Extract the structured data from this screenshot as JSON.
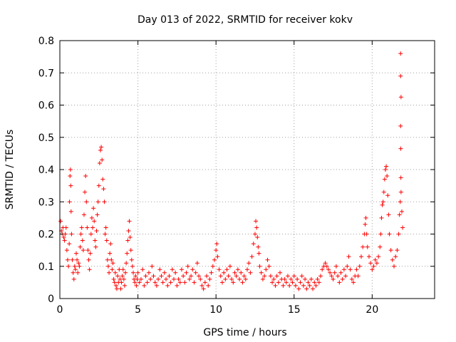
{
  "chart_data": {
    "type": "scatter",
    "title": "Day 013 of 2022, SRMTID for receiver kokv",
    "xlabel": "GPS time / hours",
    "ylabel": "SRMTID / TECUs",
    "xlim": [
      0,
      24
    ],
    "ylim": [
      0,
      0.8
    ],
    "x_ticks": [
      0,
      5,
      10,
      15,
      20
    ],
    "y_ticks": [
      0,
      0.1,
      0.2,
      0.3,
      0.4,
      0.5,
      0.6,
      0.7,
      0.8
    ],
    "x_tick_labels": [
      "0",
      "5",
      "10",
      "15",
      "20"
    ],
    "y_tick_labels": [
      "0",
      "0.1",
      "0.2",
      "0.3",
      "0.4",
      "0.5",
      "0.6",
      "0.7",
      "0.8"
    ],
    "grid": true,
    "marker": "+",
    "color": "#ff0000",
    "series": [
      {
        "name": "SRMTID",
        "points": [
          [
            0.05,
            0.24
          ],
          [
            0.1,
            0.21
          ],
          [
            0.15,
            0.2
          ],
          [
            0.2,
            0.22
          ],
          [
            0.25,
            0.19
          ],
          [
            0.3,
            0.18
          ],
          [
            0.35,
            0.2
          ],
          [
            0.4,
            0.22
          ],
          [
            0.45,
            0.15
          ],
          [
            0.5,
            0.12
          ],
          [
            0.55,
            0.1
          ],
          [
            0.6,
            0.17
          ],
          [
            0.62,
            0.3
          ],
          [
            0.65,
            0.38
          ],
          [
            0.68,
            0.4
          ],
          [
            0.7,
            0.35
          ],
          [
            0.72,
            0.27
          ],
          [
            0.75,
            0.2
          ],
          [
            0.8,
            0.12
          ],
          [
            0.85,
            0.08
          ],
          [
            0.9,
            0.06
          ],
          [
            0.95,
            0.1
          ],
          [
            1.0,
            0.09
          ],
          [
            1.05,
            0.14
          ],
          [
            1.1,
            0.12
          ],
          [
            1.15,
            0.08
          ],
          [
            1.2,
            0.11
          ],
          [
            1.25,
            0.1
          ],
          [
            1.3,
            0.16
          ],
          [
            1.35,
            0.2
          ],
          [
            1.4,
            0.22
          ],
          [
            1.45,
            0.18
          ],
          [
            1.5,
            0.15
          ],
          [
            1.55,
            0.26
          ],
          [
            1.6,
            0.33
          ],
          [
            1.65,
            0.38
          ],
          [
            1.7,
            0.3
          ],
          [
            1.75,
            0.22
          ],
          [
            1.8,
            0.15
          ],
          [
            1.85,
            0.12
          ],
          [
            1.9,
            0.09
          ],
          [
            1.95,
            0.14
          ],
          [
            2.0,
            0.2
          ],
          [
            2.05,
            0.25
          ],
          [
            2.1,
            0.22
          ],
          [
            2.15,
            0.28
          ],
          [
            2.2,
            0.24
          ],
          [
            2.25,
            0.18
          ],
          [
            2.3,
            0.16
          ],
          [
            2.35,
            0.21
          ],
          [
            2.4,
            0.26
          ],
          [
            2.45,
            0.3
          ],
          [
            2.5,
            0.35
          ],
          [
            2.55,
            0.42
          ],
          [
            2.6,
            0.46
          ],
          [
            2.65,
            0.47
          ],
          [
            2.7,
            0.43
          ],
          [
            2.75,
            0.37
          ],
          [
            2.8,
            0.34
          ],
          [
            2.85,
            0.3
          ],
          [
            2.9,
            0.2
          ],
          [
            2.95,
            0.22
          ],
          [
            3.0,
            0.18
          ],
          [
            3.05,
            0.12
          ],
          [
            3.1,
            0.1
          ],
          [
            3.15,
            0.08
          ],
          [
            3.2,
            0.14
          ],
          [
            3.25,
            0.17
          ],
          [
            3.3,
            0.12
          ],
          [
            3.35,
            0.09
          ],
          [
            3.4,
            0.11
          ],
          [
            3.45,
            0.06
          ],
          [
            3.5,
            0.05
          ],
          [
            3.55,
            0.08
          ],
          [
            3.6,
            0.04
          ],
          [
            3.65,
            0.03
          ],
          [
            3.7,
            0.07
          ],
          [
            3.75,
            0.05
          ],
          [
            3.8,
            0.09
          ],
          [
            3.85,
            0.06
          ],
          [
            3.9,
            0.03
          ],
          [
            3.95,
            0.05
          ],
          [
            4.0,
            0.07
          ],
          [
            4.05,
            0.09
          ],
          [
            4.1,
            0.06
          ],
          [
            4.15,
            0.04
          ],
          [
            4.2,
            0.08
          ],
          [
            4.25,
            0.11
          ],
          [
            4.3,
            0.14
          ],
          [
            4.35,
            0.18
          ],
          [
            4.4,
            0.21
          ],
          [
            4.45,
            0.24
          ],
          [
            4.5,
            0.19
          ],
          [
            4.55,
            0.15
          ],
          [
            4.6,
            0.12
          ],
          [
            4.65,
            0.1
          ],
          [
            4.7,
            0.08
          ],
          [
            4.75,
            0.06
          ],
          [
            4.8,
            0.05
          ],
          [
            4.85,
            0.07
          ],
          [
            4.9,
            0.04
          ],
          [
            4.95,
            0.06
          ],
          [
            5.0,
            0.08
          ],
          [
            5.1,
            0.05
          ],
          [
            5.2,
            0.06
          ],
          [
            5.3,
            0.09
          ],
          [
            5.4,
            0.04
          ],
          [
            5.5,
            0.07
          ],
          [
            5.6,
            0.05
          ],
          [
            5.7,
            0.08
          ],
          [
            5.8,
            0.06
          ],
          [
            5.9,
            0.1
          ],
          [
            6.0,
            0.07
          ],
          [
            6.1,
            0.05
          ],
          [
            6.2,
            0.04
          ],
          [
            6.3,
            0.06
          ],
          [
            6.4,
            0.09
          ],
          [
            6.5,
            0.07
          ],
          [
            6.6,
            0.05
          ],
          [
            6.7,
            0.08
          ],
          [
            6.8,
            0.06
          ],
          [
            6.9,
            0.04
          ],
          [
            7.0,
            0.07
          ],
          [
            7.1,
            0.05
          ],
          [
            7.2,
            0.09
          ],
          [
            7.3,
            0.06
          ],
          [
            7.4,
            0.08
          ],
          [
            7.5,
            0.04
          ],
          [
            7.6,
            0.06
          ],
          [
            7.7,
            0.05
          ],
          [
            7.8,
            0.09
          ],
          [
            7.9,
            0.07
          ],
          [
            8.0,
            0.05
          ],
          [
            8.1,
            0.08
          ],
          [
            8.2,
            0.1
          ],
          [
            8.3,
            0.06
          ],
          [
            8.4,
            0.07
          ],
          [
            8.5,
            0.09
          ],
          [
            8.6,
            0.05
          ],
          [
            8.7,
            0.08
          ],
          [
            8.8,
            0.11
          ],
          [
            8.9,
            0.07
          ],
          [
            9.0,
            0.06
          ],
          [
            9.1,
            0.04
          ],
          [
            9.2,
            0.03
          ],
          [
            9.3,
            0.05
          ],
          [
            9.4,
            0.07
          ],
          [
            9.5,
            0.04
          ],
          [
            9.6,
            0.06
          ],
          [
            9.7,
            0.08
          ],
          [
            9.8,
            0.1
          ],
          [
            9.9,
            0.12
          ],
          [
            10.0,
            0.15
          ],
          [
            10.05,
            0.17
          ],
          [
            10.1,
            0.13
          ],
          [
            10.2,
            0.09
          ],
          [
            10.3,
            0.07
          ],
          [
            10.4,
            0.05
          ],
          [
            10.5,
            0.08
          ],
          [
            10.6,
            0.06
          ],
          [
            10.7,
            0.09
          ],
          [
            10.8,
            0.07
          ],
          [
            10.9,
            0.1
          ],
          [
            11.0,
            0.06
          ],
          [
            11.1,
            0.05
          ],
          [
            11.2,
            0.08
          ],
          [
            11.3,
            0.07
          ],
          [
            11.4,
            0.09
          ],
          [
            11.5,
            0.06
          ],
          [
            11.6,
            0.08
          ],
          [
            11.7,
            0.05
          ],
          [
            11.8,
            0.07
          ],
          [
            11.9,
            0.06
          ],
          [
            12.0,
            0.09
          ],
          [
            12.1,
            0.11
          ],
          [
            12.2,
            0.08
          ],
          [
            12.3,
            0.13
          ],
          [
            12.4,
            0.17
          ],
          [
            12.5,
            0.2
          ],
          [
            12.55,
            0.24
          ],
          [
            12.6,
            0.22
          ],
          [
            12.65,
            0.19
          ],
          [
            12.7,
            0.16
          ],
          [
            12.75,
            0.14
          ],
          [
            12.8,
            0.1
          ],
          [
            12.9,
            0.08
          ],
          [
            13.0,
            0.06
          ],
          [
            13.1,
            0.07
          ],
          [
            13.2,
            0.09
          ],
          [
            13.3,
            0.12
          ],
          [
            13.4,
            0.1
          ],
          [
            13.5,
            0.07
          ],
          [
            13.6,
            0.05
          ],
          [
            13.7,
            0.06
          ],
          [
            13.8,
            0.04
          ],
          [
            13.9,
            0.07
          ],
          [
            14.0,
            0.05
          ],
          [
            14.1,
            0.08
          ],
          [
            14.2,
            0.06
          ],
          [
            14.3,
            0.04
          ],
          [
            14.4,
            0.06
          ],
          [
            14.5,
            0.05
          ],
          [
            14.6,
            0.07
          ],
          [
            14.7,
            0.04
          ],
          [
            14.8,
            0.06
          ],
          [
            14.9,
            0.05
          ],
          [
            15.0,
            0.07
          ],
          [
            15.1,
            0.04
          ],
          [
            15.2,
            0.06
          ],
          [
            15.3,
            0.03
          ],
          [
            15.4,
            0.05
          ],
          [
            15.5,
            0.07
          ],
          [
            15.6,
            0.04
          ],
          [
            15.7,
            0.06
          ],
          [
            15.8,
            0.03
          ],
          [
            15.9,
            0.05
          ],
          [
            16.0,
            0.04
          ],
          [
            16.1,
            0.06
          ],
          [
            16.2,
            0.03
          ],
          [
            16.3,
            0.05
          ],
          [
            16.4,
            0.04
          ],
          [
            16.5,
            0.06
          ],
          [
            16.6,
            0.05
          ],
          [
            16.7,
            0.07
          ],
          [
            16.8,
            0.09
          ],
          [
            16.9,
            0.1
          ],
          [
            17.0,
            0.11
          ],
          [
            17.1,
            0.1
          ],
          [
            17.2,
            0.09
          ],
          [
            17.3,
            0.08
          ],
          [
            17.4,
            0.07
          ],
          [
            17.5,
            0.06
          ],
          [
            17.6,
            0.08
          ],
          [
            17.7,
            0.1
          ],
          [
            17.8,
            0.07
          ],
          [
            17.9,
            0.05
          ],
          [
            18.0,
            0.08
          ],
          [
            18.1,
            0.06
          ],
          [
            18.2,
            0.09
          ],
          [
            18.3,
            0.07
          ],
          [
            18.4,
            0.1
          ],
          [
            18.5,
            0.13
          ],
          [
            18.6,
            0.09
          ],
          [
            18.7,
            0.06
          ],
          [
            18.8,
            0.05
          ],
          [
            18.9,
            0.07
          ],
          [
            19.0,
            0.09
          ],
          [
            19.1,
            0.07
          ],
          [
            19.2,
            0.1
          ],
          [
            19.3,
            0.13
          ],
          [
            19.4,
            0.16
          ],
          [
            19.5,
            0.2
          ],
          [
            19.55,
            0.23
          ],
          [
            19.6,
            0.25
          ],
          [
            19.65,
            0.2
          ],
          [
            19.7,
            0.16
          ],
          [
            19.8,
            0.13
          ],
          [
            19.9,
            0.11
          ],
          [
            20.0,
            0.09
          ],
          [
            20.1,
            0.1
          ],
          [
            20.2,
            0.12
          ],
          [
            20.3,
            0.11
          ],
          [
            20.4,
            0.13
          ],
          [
            20.5,
            0.16
          ],
          [
            20.55,
            0.2
          ],
          [
            20.6,
            0.25
          ],
          [
            20.65,
            0.29
          ],
          [
            20.7,
            0.3
          ],
          [
            20.75,
            0.33
          ],
          [
            20.8,
            0.37
          ],
          [
            20.85,
            0.4
          ],
          [
            20.9,
            0.41
          ],
          [
            20.95,
            0.38
          ],
          [
            21.0,
            0.32
          ],
          [
            21.05,
            0.26
          ],
          [
            21.1,
            0.2
          ],
          [
            21.2,
            0.15
          ],
          [
            21.3,
            0.12
          ],
          [
            21.4,
            0.1
          ],
          [
            21.5,
            0.13
          ],
          [
            21.6,
            0.15
          ],
          [
            21.7,
            0.2
          ],
          [
            21.75,
            0.26
          ],
          [
            21.8,
            0.3
          ],
          [
            21.85,
            0.33
          ],
          [
            21.9,
            0.27
          ],
          [
            21.95,
            0.22
          ],
          [
            21.82,
            0.76
          ],
          [
            21.82,
            0.69
          ],
          [
            21.85,
            0.625
          ],
          [
            21.82,
            0.535
          ],
          [
            21.83,
            0.465
          ],
          [
            21.84,
            0.375
          ]
        ]
      }
    ]
  }
}
